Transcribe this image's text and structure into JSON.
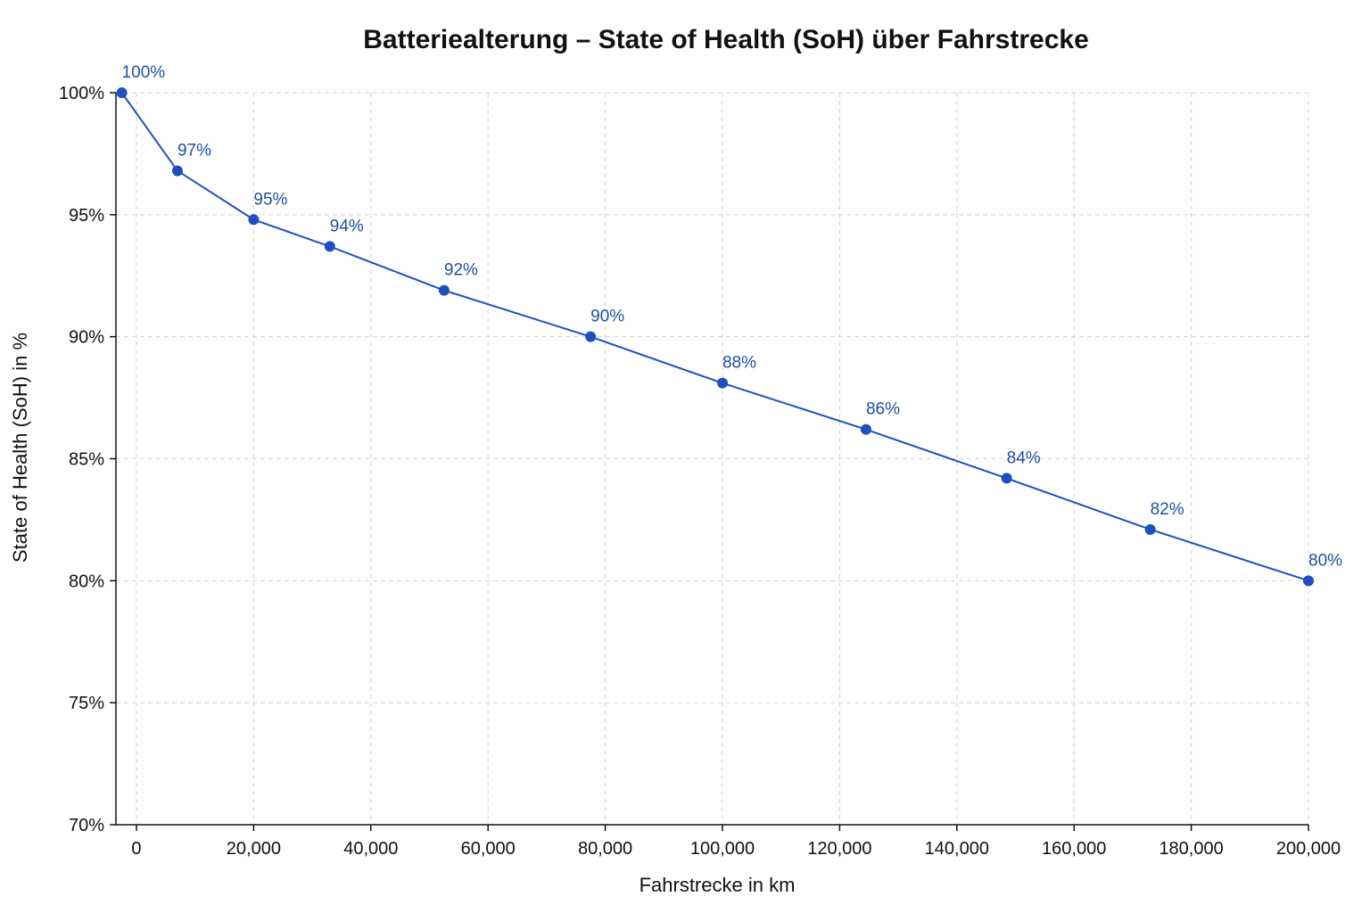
{
  "chart_data": {
    "type": "line",
    "title": "Batteriealterung – State of Health (SoH) über Fahrstrecke",
    "xlabel": "Fahrstrecke in km",
    "ylabel": "State of Health (SoH) in %",
    "xlim": [
      -3500,
      200000
    ],
    "ylim": [
      70,
      100
    ],
    "x_ticks": [
      0,
      20000,
      40000,
      60000,
      80000,
      100000,
      120000,
      140000,
      160000,
      180000,
      200000
    ],
    "x_tick_labels": [
      "0",
      "20,000",
      "40,000",
      "60,000",
      "80,000",
      "100,000",
      "120,000",
      "140,000",
      "160,000",
      "180,000",
      "200,000"
    ],
    "y_ticks": [
      70,
      75,
      80,
      85,
      90,
      95,
      100
    ],
    "y_tick_labels": [
      "70%",
      "75%",
      "80%",
      "85%",
      "90%",
      "95%",
      "100%"
    ],
    "grid": true,
    "legend": "none",
    "line_color": "#1f4fbf",
    "label_color": "#1f4f9f",
    "series": [
      {
        "x": [
          -2500,
          7000,
          20000,
          33000,
          52500,
          77500,
          100000,
          124500,
          148500,
          173000,
          200000
        ],
        "values": [
          100.0,
          96.8,
          94.8,
          93.7,
          91.9,
          90.0,
          88.1,
          86.2,
          84.2,
          82.1,
          80.0
        ],
        "data_labels": [
          "100%",
          "97%",
          "95%",
          "94%",
          "92%",
          "90%",
          "88%",
          "86%",
          "84%",
          "82%",
          "80%"
        ]
      }
    ]
  }
}
